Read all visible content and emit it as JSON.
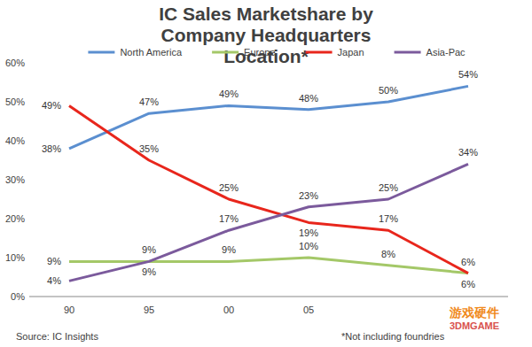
{
  "chart_data": {
    "type": "line",
    "title": "IC Sales Marketshare by Company Headquarters Location*",
    "categories": [
      "90",
      "95",
      "00",
      "05",
      null,
      null
    ],
    "series": [
      {
        "name": "North America",
        "color": "#5b8fd0",
        "values": [
          38,
          47,
          49,
          48,
          50,
          54
        ],
        "value_labels": [
          "38%",
          "47%",
          "49%",
          "48%",
          "50%",
          "54%"
        ]
      },
      {
        "name": "Europe",
        "color": "#a4c868",
        "values": [
          9,
          9,
          9,
          10,
          8,
          6
        ],
        "value_labels": [
          "9%",
          "9%",
          "9%",
          "10%",
          "8%",
          "6%"
        ]
      },
      {
        "name": "Japan",
        "color": "#e8261c",
        "values": [
          49,
          35,
          25,
          19,
          17,
          6
        ],
        "value_labels": [
          "49%",
          "35%",
          "25%",
          "19%",
          "17%",
          "6%"
        ]
      },
      {
        "name": "Asia-Pac",
        "color": "#7b5a9c",
        "values": [
          4,
          9,
          17,
          23,
          25,
          34
        ],
        "value_labels": [
          "4%",
          "9%",
          "17%",
          "23%",
          "25%",
          "34%"
        ]
      }
    ],
    "ylim": [
      0,
      60
    ],
    "yticks": [
      {
        "value": 0,
        "label": "0%"
      },
      {
        "value": 10,
        "label": "10%"
      },
      {
        "value": 20,
        "label": "20%"
      },
      {
        "value": 30,
        "label": "30%"
      },
      {
        "value": 40,
        "label": "40%"
      },
      {
        "value": 50,
        "label": "50%"
      },
      {
        "value": 60,
        "label": "60%"
      }
    ],
    "grid": false,
    "legend": "top",
    "data_labels": true,
    "source": "Source: IC Insights",
    "note": "*Not including foundries",
    "watermark": [
      "游戏硬件",
      "3DMGAME"
    ]
  }
}
